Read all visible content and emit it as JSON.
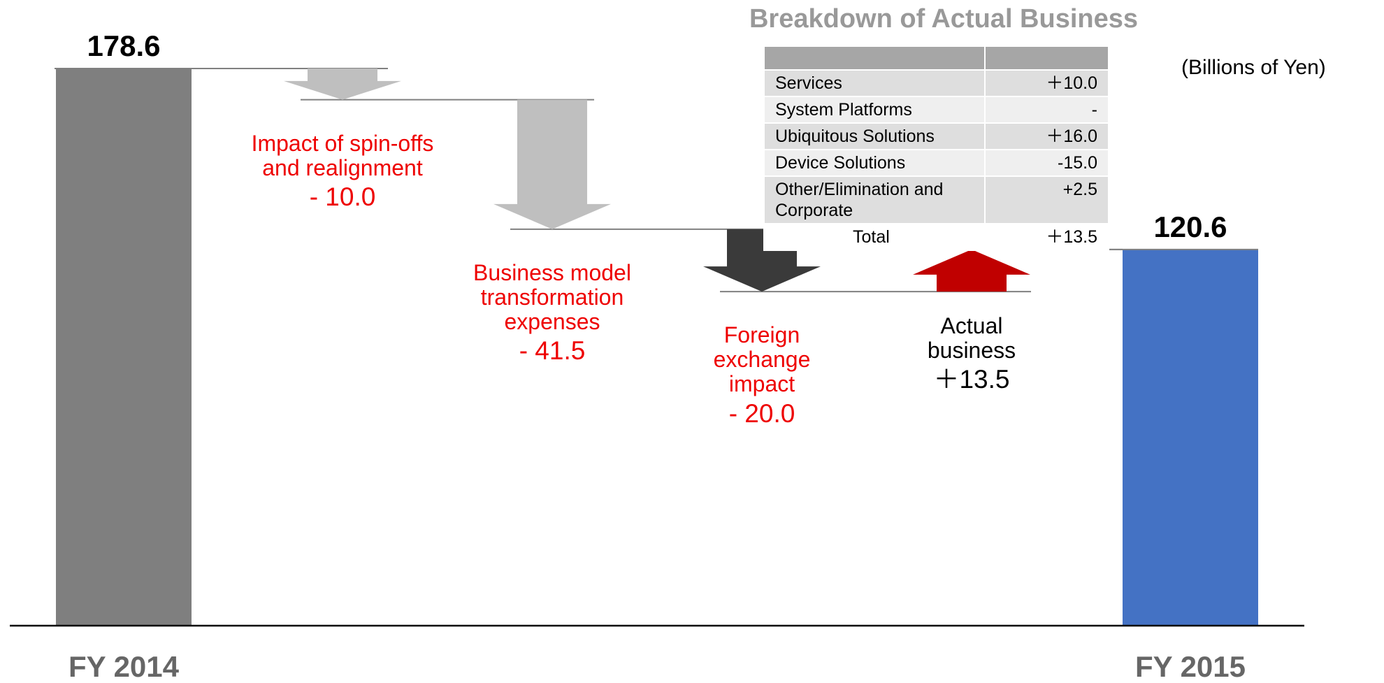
{
  "chart_data": {
    "type": "waterfall",
    "categories": [
      "FY 2014",
      "Impact of spin-offs and realignment",
      "Business model transformation expenses",
      "Foreign exchange impact",
      "Actual business",
      "FY 2015"
    ],
    "values": [
      178.6,
      -10.0,
      -41.5,
      -20.0,
      13.5,
      120.6
    ],
    "value_labels": [
      "178.6",
      "- 10.0",
      "- 41.5",
      "- 20.0",
      "＋13.5",
      "120.6"
    ],
    "colors": [
      "#7f7f7f",
      "#bfbfbf",
      "#bfbfbf",
      "#3a3a3a",
      "#c00000",
      "#4472c4"
    ],
    "unit": "(Billions of Yen)"
  },
  "table": {
    "title": "Breakdown of Actual Business",
    "rows": [
      [
        "Services",
        "＋10.0"
      ],
      [
        "System Platforms",
        "-"
      ],
      [
        "Ubiquitous Solutions",
        "＋16.0"
      ],
      [
        "Device Solutions",
        "-15.0"
      ],
      [
        "Other/Elimination and Corporate",
        "+2.5"
      ]
    ],
    "total": [
      "Total",
      "＋13.5"
    ]
  }
}
